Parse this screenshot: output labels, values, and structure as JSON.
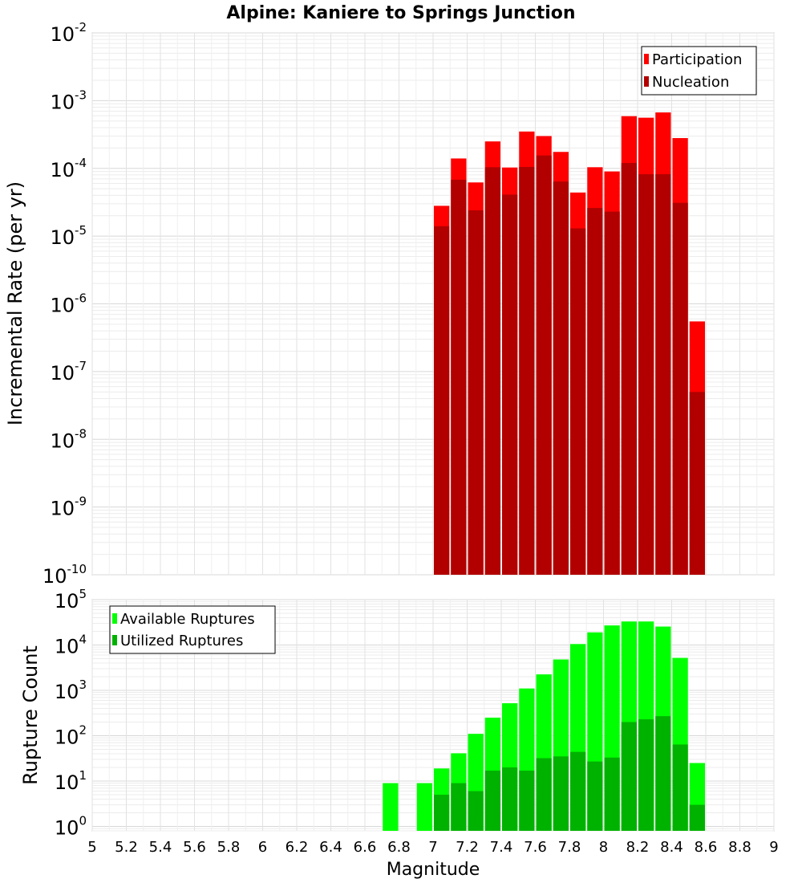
{
  "chart_data": [
    {
      "type": "bar",
      "title": "Alpine: Kaniere to Springs Junction",
      "ylabel": "Incremental Rate (per yr)",
      "xlabel": "",
      "ylim": [
        1e-10,
        0.01
      ],
      "yscale": "log",
      "y_tick_labels": [
        "10-10",
        "10-9",
        "10-8",
        "10-7",
        "10-6",
        "10-5",
        "10-4",
        "10-3",
        "10-2"
      ],
      "xlim": [
        5,
        9
      ],
      "grid": true,
      "legend": "top-right",
      "overlay": true,
      "x": [
        7.05,
        7.15,
        7.25,
        7.35,
        7.45,
        7.55,
        7.65,
        7.75,
        7.85,
        7.95,
        8.05,
        8.15,
        8.25,
        8.35,
        8.45,
        8.55
      ],
      "series": [
        {
          "name": "Participation",
          "color": "#ff0000",
          "values": [
            2.8e-05,
            0.00014,
            6.2e-05,
            0.00025,
            0.000103,
            0.00035,
            0.0003,
            0.000175,
            4.4e-05,
            0.000104,
            9e-05,
            0.00059,
            0.00056,
            0.00067,
            0.00028,
            5.5e-07
          ]
        },
        {
          "name": "Nucleation",
          "color": "#b20000",
          "values": [
            1.4e-05,
            6.8e-05,
            2.4e-05,
            0.000104,
            4.1e-05,
            0.000105,
            0.000155,
            6.4e-05,
            1.3e-05,
            2.6e-05,
            2.3e-05,
            0.00012,
            8.2e-05,
            8.2e-05,
            3.1e-05,
            5e-08
          ]
        }
      ]
    },
    {
      "type": "bar",
      "title": "",
      "ylabel": "Rupture Count",
      "xlabel": "Magnitude",
      "ylim": [
        0.8,
        100000.0
      ],
      "yscale": "log",
      "y_tick_labels": [
        "100",
        "101",
        "102",
        "103",
        "104",
        "105"
      ],
      "xlim": [
        5,
        9
      ],
      "x_tick_labels": [
        "5",
        "5.2",
        "5.4",
        "5.6",
        "5.8",
        "6",
        "6.2",
        "6.4",
        "6.6",
        "6.8",
        "7",
        "7.2",
        "7.4",
        "7.6",
        "7.8",
        "8",
        "8.2",
        "8.4",
        "8.6",
        "8.8",
        "9"
      ],
      "grid": true,
      "legend": "top-left",
      "overlay": true,
      "x": [
        6.75,
        6.95,
        7.05,
        7.15,
        7.25,
        7.35,
        7.45,
        7.55,
        7.65,
        7.75,
        7.85,
        7.95,
        8.05,
        8.15,
        8.25,
        8.35,
        8.45,
        8.55
      ],
      "series": [
        {
          "name": "Available Ruptures",
          "color": "#00ff00",
          "values": [
            9,
            9,
            19,
            41,
            110,
            250,
            520,
            1100,
            2250,
            4800,
            10500,
            19000,
            27000,
            33000,
            33000,
            25500,
            5200,
            25
          ]
        },
        {
          "name": "Utilized Ruptures",
          "color": "#00b200",
          "values": [
            0,
            0,
            5,
            9,
            6,
            17,
            20,
            17,
            32,
            35,
            44,
            27,
            33,
            200,
            230,
            270,
            64,
            3
          ]
        }
      ]
    }
  ]
}
